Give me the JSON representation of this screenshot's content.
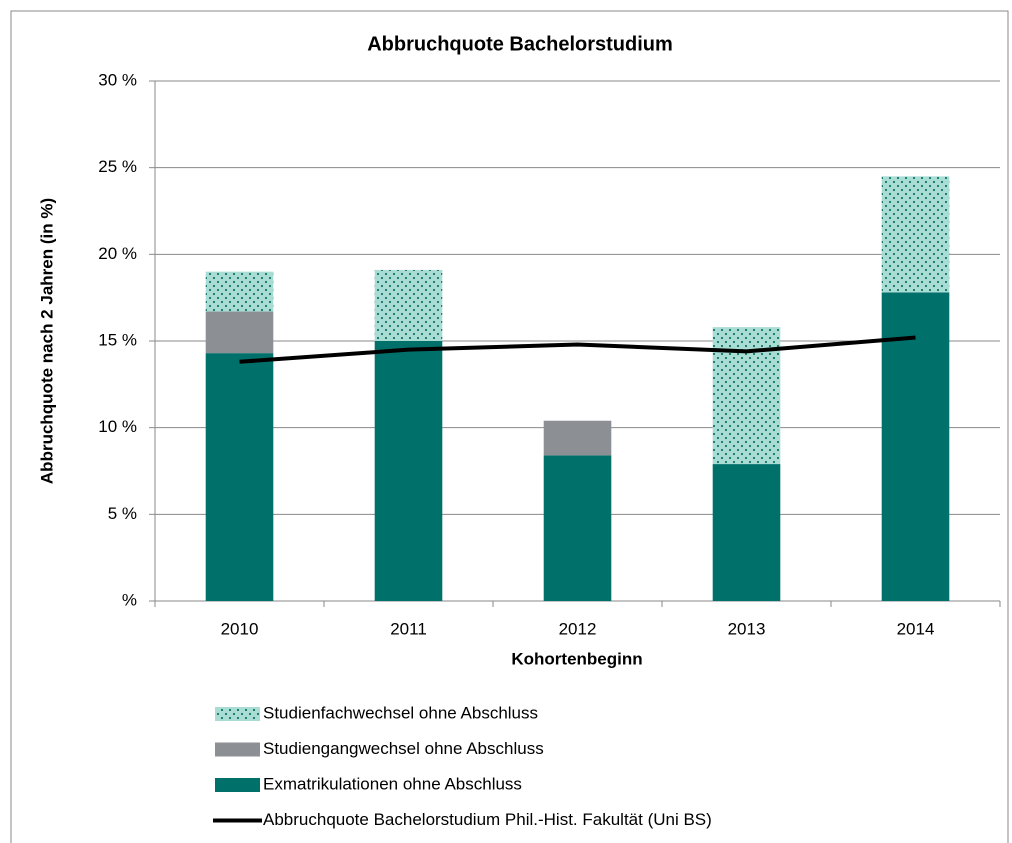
{
  "chart_data": {
    "type": "bar",
    "stacked": true,
    "title": "Abbruchquote Bachelorstudium",
    "x_label": "Kohortenbeginn",
    "y_label": "Abbruchquote nach 2 Jahren (in %)",
    "categories": [
      "2010",
      "2011",
      "2012",
      "2013",
      "2014"
    ],
    "series": [
      {
        "name": "Exmatrikulationen ohne Abschluss",
        "type": "bar",
        "color": "#00716a",
        "values": [
          14.3,
          15.0,
          8.4,
          7.9,
          17.8
        ]
      },
      {
        "name": "Studiengangwechsel ohne Abschluss",
        "type": "bar",
        "color": "#8c8f93",
        "values": [
          2.4,
          0,
          2.0,
          0,
          0
        ]
      },
      {
        "name": "Studienfachwechsel ohne Abschluss",
        "type": "bar",
        "color": "#a9dcd3",
        "pattern": "dots",
        "values": [
          2.3,
          4.1,
          0,
          7.9,
          6.7
        ]
      },
      {
        "name": "Abbruchquote Bachelorstudium Phil.-Hist. Fakultät (Uni BS)",
        "type": "line",
        "color": "#000000",
        "values": [
          13.8,
          14.5,
          14.8,
          14.4,
          15.2
        ]
      }
    ],
    "ylim": [
      0,
      30
    ],
    "yticks": [
      {
        "value": 0,
        "label": "%"
      },
      {
        "value": 5,
        "label": "5 %"
      },
      {
        "value": 10,
        "label": "10 %"
      },
      {
        "value": 15,
        "label": "15 %"
      },
      {
        "value": 20,
        "label": "20 %"
      },
      {
        "value": 25,
        "label": "25 %"
      },
      {
        "value": 30,
        "label": "30 %"
      }
    ],
    "grid": true,
    "legend": "bottom"
  }
}
